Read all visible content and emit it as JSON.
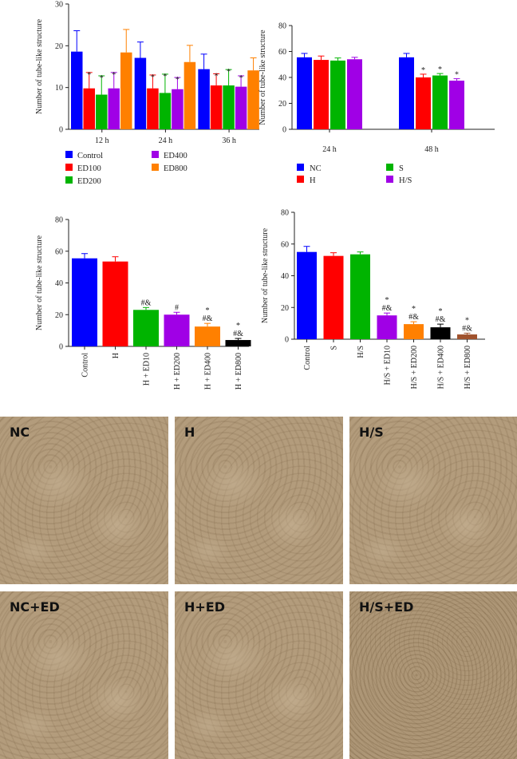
{
  "chart_data": [
    {
      "type": "bar",
      "ylabel": "Number of tube-like structure",
      "ylim": [
        0,
        30
      ],
      "yticks": [
        0,
        10,
        20,
        30
      ],
      "categories": [
        "12 h",
        "24 h",
        "36 h"
      ],
      "series": [
        {
          "name": "Control",
          "color": "#0000ff",
          "values": [
            18.6,
            17.1,
            14.4
          ],
          "errors": [
            5.0,
            3.8,
            3.6
          ],
          "marks": [
            "",
            "",
            ""
          ]
        },
        {
          "name": "ED100",
          "color": "#ff0000",
          "values": [
            9.8,
            9.8,
            10.5
          ],
          "errors": [
            3.8,
            3.2,
            2.8
          ],
          "marks": [
            "*",
            "*",
            "*"
          ]
        },
        {
          "name": "ED200",
          "color": "#00b400",
          "values": [
            8.3,
            8.7,
            10.5
          ],
          "errors": [
            4.5,
            4.5,
            3.8
          ],
          "marks": [
            "*",
            "*",
            "*"
          ]
        },
        {
          "name": "ED400",
          "color": "#a000e6",
          "values": [
            9.8,
            9.6,
            10.2
          ],
          "errors": [
            3.8,
            2.8,
            2.6
          ],
          "marks": [
            "*",
            "*",
            "*"
          ]
        },
        {
          "name": "ED800",
          "color": "#ff8000",
          "values": [
            18.4,
            16.1,
            14.1
          ],
          "errors": [
            5.5,
            4.0,
            3.0
          ],
          "marks": [
            "",
            "",
            ""
          ]
        }
      ],
      "legend": "bottom"
    },
    {
      "type": "bar",
      "ylabel": "Number of tube-like structure",
      "ylim": [
        0,
        80
      ],
      "yticks": [
        0,
        20,
        40,
        60,
        80
      ],
      "categories": [
        "24 h",
        "48 h"
      ],
      "series": [
        {
          "name": "NC",
          "color": "#0000ff",
          "values": [
            55.5,
            55.5
          ],
          "errors": [
            3.0,
            3.0
          ],
          "marks": [
            "",
            ""
          ]
        },
        {
          "name": "H",
          "color": "#ff0000",
          "values": [
            53.5,
            40.0
          ],
          "errors": [
            3.0,
            2.5
          ],
          "marks": [
            "",
            "*"
          ]
        },
        {
          "name": "S",
          "color": "#00b400",
          "values": [
            53.0,
            41.5
          ],
          "errors": [
            2.0,
            1.5
          ],
          "marks": [
            "",
            "*"
          ]
        },
        {
          "name": "H/S",
          "color": "#a000e6",
          "values": [
            54.0,
            37.5
          ],
          "errors": [
            1.5,
            1.5
          ],
          "marks": [
            "",
            "*"
          ]
        }
      ],
      "legend": "bottom"
    },
    {
      "type": "bar",
      "ylabel": "Number of tube-like structure",
      "ylim": [
        0,
        80
      ],
      "yticks": [
        0,
        20,
        40,
        60,
        80
      ],
      "categories": [
        "Control",
        "H",
        "H + ED10",
        "H + ED200",
        "H + ED400",
        "H + ED800"
      ],
      "values": [
        55.5,
        53.5,
        23.0,
        20.0,
        12.5,
        4.0
      ],
      "errors": [
        3.0,
        3.0,
        1.5,
        1.5,
        2.0,
        1.0
      ],
      "colors": [
        "#0000ff",
        "#ff0000",
        "#00b400",
        "#a000e6",
        "#ff8000",
        "#000000"
      ],
      "marks": [
        [],
        [],
        [
          "#&"
        ],
        [
          "#"
        ],
        [
          "*",
          "#&"
        ],
        [
          "*",
          "#&"
        ]
      ]
    },
    {
      "type": "bar",
      "ylabel": "Number of tube-like structure",
      "ylim": [
        0,
        80
      ],
      "yticks": [
        0,
        20,
        40,
        60,
        80
      ],
      "categories": [
        "Control",
        "S",
        "H/S",
        "H/S + ED10",
        "H/S + ED200",
        "H/S + ED400",
        "H/S + ED800"
      ],
      "values": [
        55.0,
        52.5,
        53.5,
        15.0,
        9.5,
        7.5,
        3.0
      ],
      "errors": [
        3.5,
        2.0,
        1.5,
        1.5,
        1.5,
        2.0,
        0.8
      ],
      "colors": [
        "#0000ff",
        "#ff0000",
        "#00b400",
        "#a000e6",
        "#ff8000",
        "#000000",
        "#a0522d"
      ],
      "marks": [
        [],
        [],
        [],
        [
          "*",
          "#&"
        ],
        [
          "*",
          "#&"
        ],
        [
          "*",
          "#&"
        ],
        [
          "*",
          "#&"
        ]
      ]
    }
  ],
  "photos": [
    {
      "label": "NC"
    },
    {
      "label": "H"
    },
    {
      "label": "H/S"
    },
    {
      "label": "NC+ED"
    },
    {
      "label": "H+ED"
    },
    {
      "label": "H/S+ED"
    }
  ]
}
